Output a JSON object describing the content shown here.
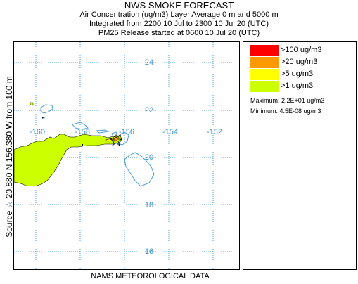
{
  "header": {
    "title": "NWS SMOKE FORECAST",
    "line2": "Air Concentration (ug/m3) Layer Average    0 m and  5000 m",
    "line3": "Integrated from 2200 10 Jul to 2300 10 Jul 20 (UTC)",
    "line4": "PM25 Release started at 0600 10 Jul 20 (UTC)"
  },
  "side_label": "Source ☆  20.880 N 156.380  W    from  100 m",
  "footer": "NAMS METEOROLOGICAL DATA",
  "map": {
    "lon_labels": [
      "-160",
      "-158",
      "-156",
      "-154",
      "-152"
    ],
    "lat_labels": [
      "24",
      "22",
      "20",
      "18",
      "16"
    ],
    "grid_color": "#4a9fd8",
    "coast_color": "#4a9fd8",
    "smoke_color": "#ccff00",
    "source_marker": "star-icon"
  },
  "legend": {
    "items": [
      {
        "label": ">100 ug/m3",
        "color": "#ff0000"
      },
      {
        "label": ">20 ug/m3",
        "color": "#ff9900"
      },
      {
        "label": ">5 ug/m3",
        "color": "#ffff00"
      },
      {
        "label": ">1 ug/m3",
        "color": "#ccff00"
      }
    ],
    "maximum": "Maximum: 2.2E+01 ug/m3",
    "minimum": "Minimum: 4.5E-08 ug/m3"
  }
}
